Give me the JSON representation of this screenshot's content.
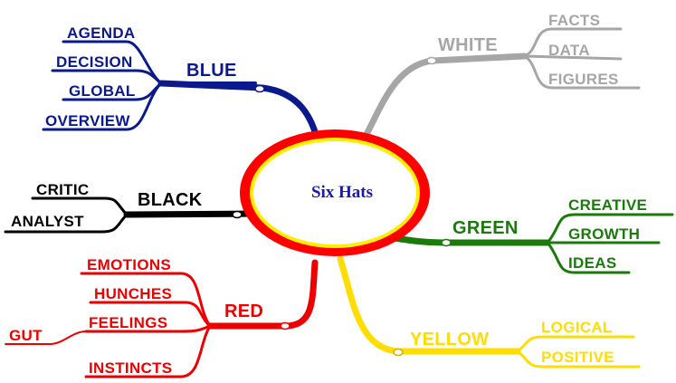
{
  "center": {
    "label": "Six Hats",
    "ring_color": "#ff0000",
    "fill_color": "#ffffff",
    "inner_ring_color": "#ffee00",
    "text_color": "#1a1aa6"
  },
  "branches": [
    {
      "key": "blue",
      "label": "BLUE",
      "color": "#0a1a8c",
      "children": [
        "AGENDA",
        "DECISION",
        "GLOBAL",
        "OVERVIEW"
      ]
    },
    {
      "key": "white",
      "label": "WHITE",
      "color": "#a6a6a6",
      "children": [
        "FACTS",
        "DATA",
        "FIGURES"
      ]
    },
    {
      "key": "black",
      "label": "BLACK",
      "color": "#000000",
      "children": [
        "CRITIC",
        "ANALYST"
      ]
    },
    {
      "key": "green",
      "label": "GREEN",
      "color": "#1a7a0a",
      "children": [
        "CREATIVE",
        "GROWTH",
        "IDEAS"
      ]
    },
    {
      "key": "red",
      "label": "RED",
      "color": "#ee0000",
      "children": [
        "EMOTIONS",
        "HUNCHES",
        "FEELINGS",
        "INSTINCTS"
      ],
      "grandchild": {
        "parent": "FEELINGS",
        "label": "GUT"
      }
    },
    {
      "key": "yellow",
      "label": "YELLOW",
      "color": "#ffdd00",
      "children": [
        "LOGICAL",
        "POSITIVE"
      ]
    }
  ]
}
